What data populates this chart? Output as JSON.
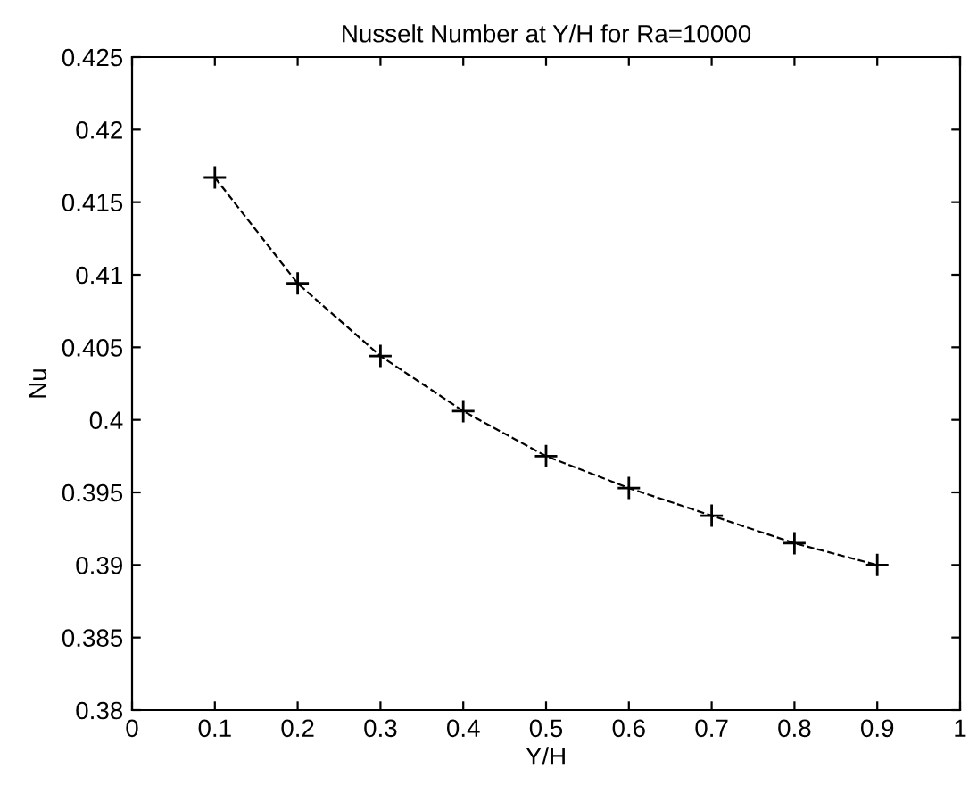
{
  "chart_data": {
    "type": "line",
    "title": "Nusselt Number at Y/H for Ra=10000",
    "xlabel": "Y/H",
    "ylabel": "Nu",
    "x": [
      0.1,
      0.2,
      0.3,
      0.4,
      0.5,
      0.6,
      0.7,
      0.8,
      0.9
    ],
    "series": [
      {
        "color": "#000000",
        "values": [
          0.4167,
          0.4094,
          0.4044,
          0.4006,
          0.3975,
          0.3953,
          0.3934,
          0.3915,
          0.39
        ]
      }
    ],
    "xlim": [
      0,
      1
    ],
    "xticks": [
      0,
      0.1,
      0.2,
      0.3,
      0.4,
      0.5,
      0.6,
      0.7,
      0.8,
      0.9,
      1
    ],
    "ylim": [
      0.38,
      0.425
    ],
    "yticks": [
      0.38,
      0.385,
      0.39,
      0.395,
      0.4,
      0.405,
      0.41,
      0.415,
      0.42,
      0.425
    ],
    "marker": "cross",
    "line_style": "dashed",
    "grid": false,
    "legend": false
  }
}
